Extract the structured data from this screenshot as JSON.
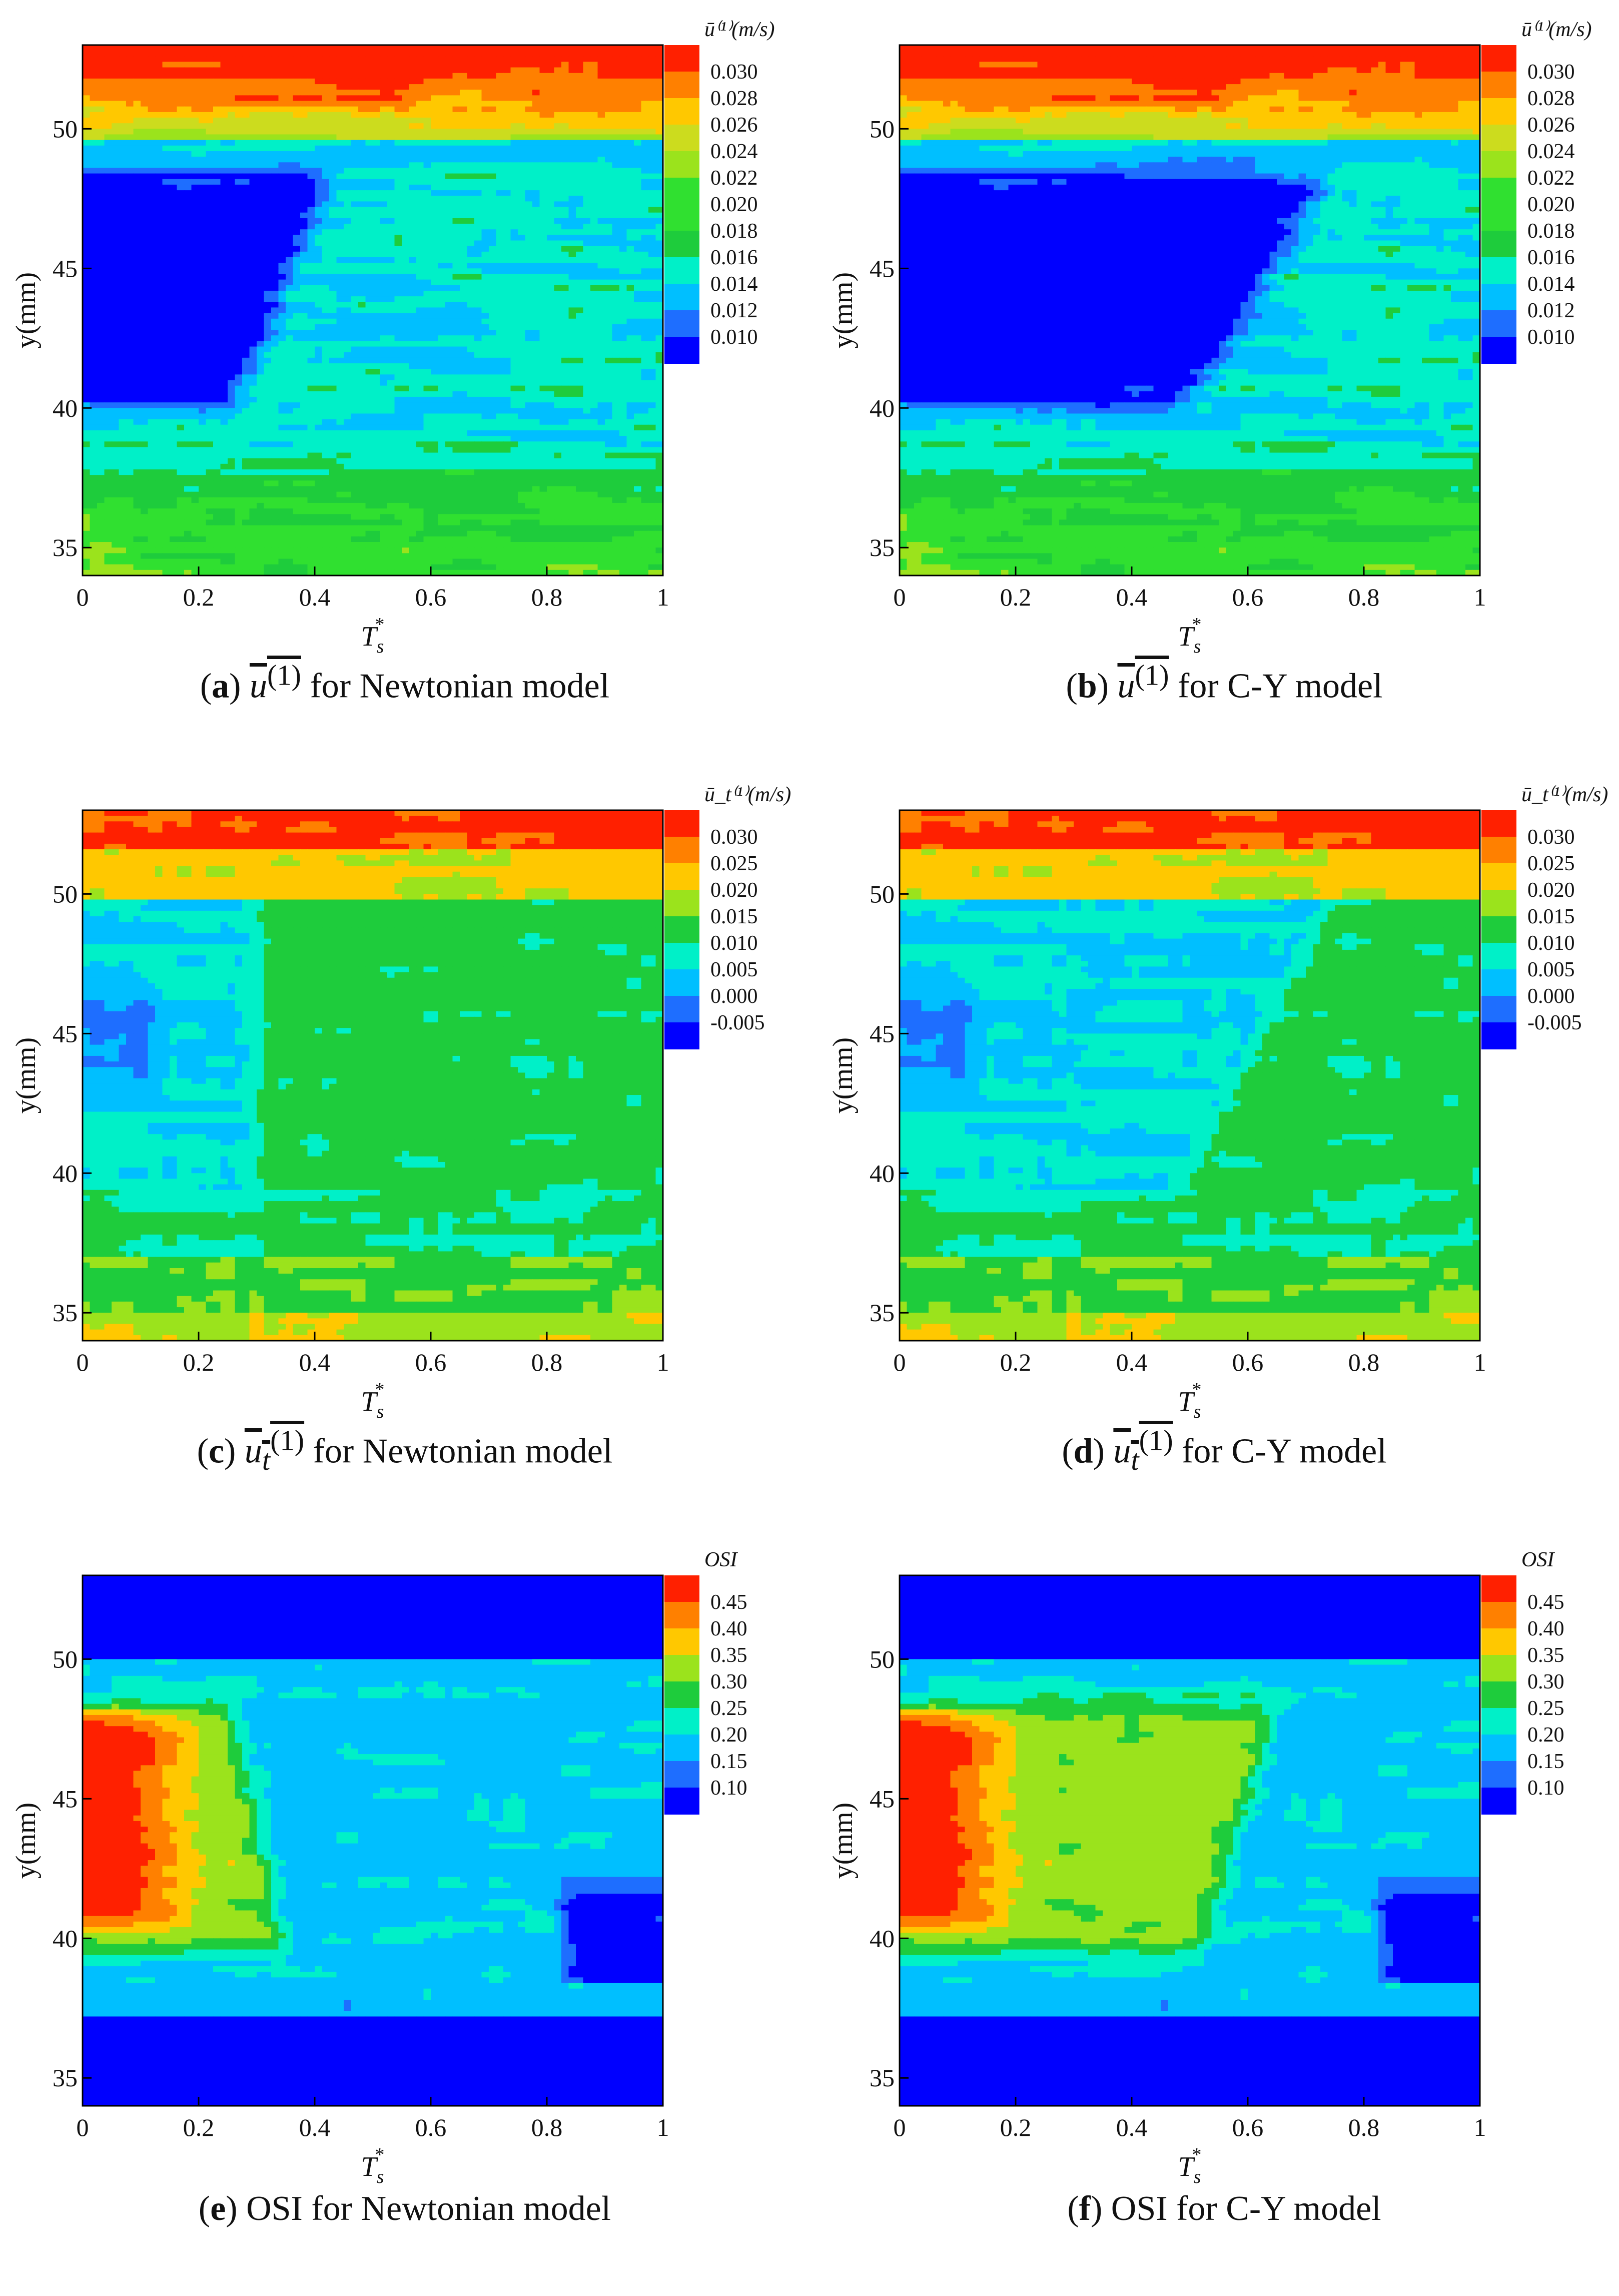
{
  "figure": {
    "panels": [
      {
        "id": "a",
        "letter": "a",
        "symbol": "u",
        "sub": "",
        "sup": "(1)",
        "text": "for Newtonian model",
        "legend_title": "ū⁽¹⁾(m/s)",
        "color_ticks": [
          "0.030",
          "0.028",
          "0.026",
          "0.024",
          "0.022",
          "0.020",
          "0.018",
          "0.016",
          "0.014",
          "0.012",
          "0.010"
        ]
      },
      {
        "id": "b",
        "letter": "b",
        "symbol": "u",
        "sub": "",
        "sup": "(1)",
        "text": "for C-Y model",
        "legend_title": "ū⁽¹⁾(m/s)",
        "color_ticks": [
          "0.030",
          "0.028",
          "0.026",
          "0.024",
          "0.022",
          "0.020",
          "0.018",
          "0.016",
          "0.014",
          "0.012",
          "0.010"
        ]
      },
      {
        "id": "c",
        "letter": "c",
        "symbol": "u",
        "sub": "t",
        "sup": "(1)",
        "text": "for Newtonian model",
        "legend_title": "ū_t⁽¹⁾(m/s)",
        "color_ticks": [
          "0.030",
          "0.025",
          "0.020",
          "0.015",
          "0.010",
          "0.005",
          "0.000",
          "-0.005"
        ]
      },
      {
        "id": "d",
        "letter": "d",
        "symbol": "u",
        "sub": "t",
        "sup": "(1)",
        "text": "for C-Y model",
        "legend_title": "ū_t⁽¹⁾(m/s)",
        "color_ticks": [
          "0.030",
          "0.025",
          "0.020",
          "0.015",
          "0.010",
          "0.005",
          "0.000",
          "-0.005"
        ]
      },
      {
        "id": "e",
        "letter": "e",
        "symbol": "",
        "sub": "",
        "sup": "",
        "text": "OSI for Newtonian model",
        "legend_title": "OSI",
        "color_ticks": [
          "0.45",
          "0.40",
          "0.35",
          "0.30",
          "0.25",
          "0.20",
          "0.15",
          "0.10"
        ]
      },
      {
        "id": "f",
        "letter": "f",
        "symbol": "",
        "sub": "",
        "sup": "",
        "text": "OSI for C-Y model",
        "legend_title": "OSI",
        "color_ticks": [
          "0.45",
          "0.40",
          "0.35",
          "0.30",
          "0.25",
          "0.20",
          "0.15",
          "0.10"
        ]
      }
    ]
  },
  "chart_data": [
    {
      "type": "heatmap",
      "title": "u(1) for Newtonian model",
      "xlabel": "T_s*",
      "ylabel": "y(mm)",
      "xlim": [
        0,
        1
      ],
      "ylim": [
        34,
        53
      ],
      "xticks": [
        0,
        0.2,
        0.4,
        0.6,
        0.8,
        1
      ],
      "yticks": [
        35,
        40,
        45,
        50
      ],
      "colorbar_label": "u(1) (m/s)",
      "colorbar_ticks": [
        0.03,
        0.028,
        0.026,
        0.024,
        0.022,
        0.02,
        0.018,
        0.016,
        0.014,
        0.012,
        0.01
      ]
    },
    {
      "type": "heatmap",
      "title": "u(1) for C-Y model",
      "xlabel": "T_s*",
      "ylabel": "y(mm)",
      "xlim": [
        0,
        1
      ],
      "ylim": [
        34,
        53
      ],
      "xticks": [
        0,
        0.2,
        0.4,
        0.6,
        0.8,
        1
      ],
      "yticks": [
        35,
        40,
        45,
        50
      ],
      "colorbar_label": "u(1) (m/s)",
      "colorbar_ticks": [
        0.03,
        0.028,
        0.026,
        0.024,
        0.022,
        0.02,
        0.018,
        0.016,
        0.014,
        0.012,
        0.01
      ]
    },
    {
      "type": "heatmap",
      "title": "u_t(1) for Newtonian model",
      "xlabel": "T_s*",
      "ylabel": "y(mm)",
      "xlim": [
        0,
        1
      ],
      "ylim": [
        34,
        53
      ],
      "xticks": [
        0,
        0.2,
        0.4,
        0.6,
        0.8,
        1
      ],
      "yticks": [
        35,
        40,
        45,
        50
      ],
      "colorbar_label": "u_t(1) (m/s)",
      "colorbar_ticks": [
        0.03,
        0.025,
        0.02,
        0.015,
        0.01,
        0.005,
        0.0,
        -0.005
      ]
    },
    {
      "type": "heatmap",
      "title": "u_t(1) for C-Y model",
      "xlabel": "T_s*",
      "ylabel": "y(mm)",
      "xlim": [
        0,
        1
      ],
      "ylim": [
        34,
        53
      ],
      "xticks": [
        0,
        0.2,
        0.4,
        0.6,
        0.8,
        1
      ],
      "yticks": [
        35,
        40,
        45,
        50
      ],
      "colorbar_label": "u_t(1) (m/s)",
      "colorbar_ticks": [
        0.03,
        0.025,
        0.02,
        0.015,
        0.01,
        0.005,
        0.0,
        -0.005
      ]
    },
    {
      "type": "heatmap",
      "title": "OSI for Newtonian model",
      "xlabel": "T_s*",
      "ylabel": "y(mm)",
      "xlim": [
        0,
        1
      ],
      "ylim": [
        34,
        53
      ],
      "xticks": [
        0,
        0.2,
        0.4,
        0.6,
        0.8,
        1
      ],
      "yticks": [
        35,
        40,
        45,
        50
      ],
      "colorbar_label": "OSI",
      "colorbar_ticks": [
        0.45,
        0.4,
        0.35,
        0.3,
        0.25,
        0.2,
        0.15,
        0.1
      ]
    },
    {
      "type": "heatmap",
      "title": "OSI for C-Y model",
      "xlabel": "T_s*",
      "ylabel": "y(mm)",
      "xlim": [
        0,
        1
      ],
      "ylim": [
        34,
        53
      ],
      "xticks": [
        0,
        0.2,
        0.4,
        0.6,
        0.8,
        1
      ],
      "yticks": [
        35,
        40,
        45,
        50
      ],
      "colorbar_label": "OSI",
      "colorbar_ticks": [
        0.45,
        0.4,
        0.35,
        0.3,
        0.25,
        0.2,
        0.15,
        0.1
      ]
    }
  ],
  "palette": [
    "#0000ff",
    "#1e6eff",
    "#00bfff",
    "#00f0c8",
    "#1ecc3c",
    "#30e030",
    "#9be31c",
    "#ccdc1e",
    "#ffc800",
    "#ff8000",
    "#ff2000"
  ],
  "axis_labels": {
    "x_main": "T",
    "x_sub": "s",
    "x_sup": "*",
    "y": "y(mm)"
  }
}
